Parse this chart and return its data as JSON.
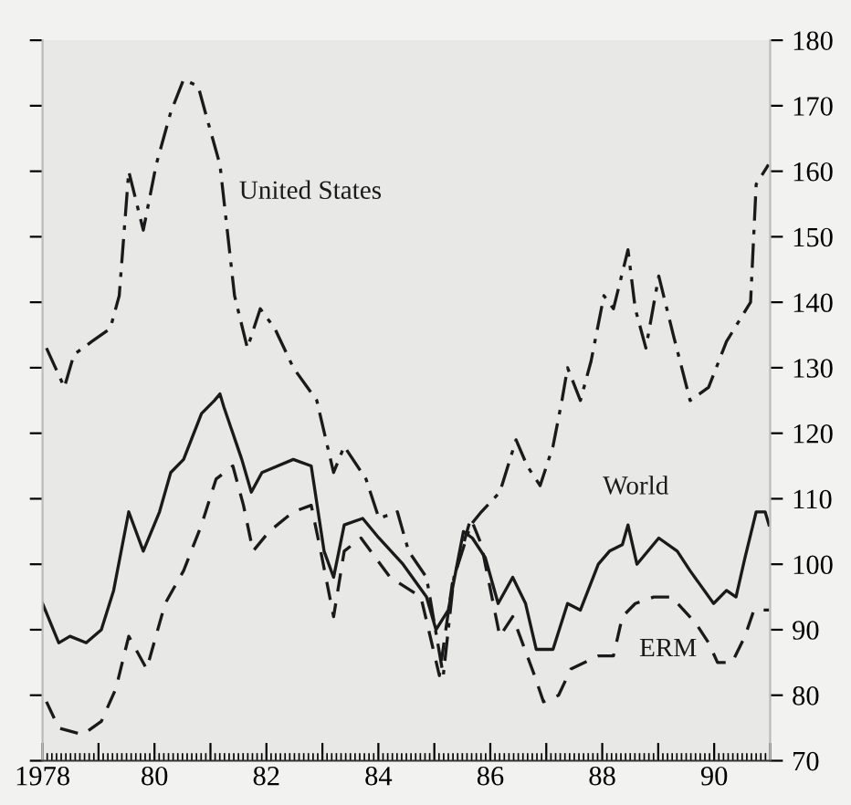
{
  "chart_data": {
    "type": "line",
    "xlim": [
      1978,
      1991
    ],
    "xticks": [
      {
        "value": 1978,
        "label": "1978"
      },
      {
        "value": 1979,
        "label": null
      },
      {
        "value": 1980,
        "label": "80"
      },
      {
        "value": 1981,
        "label": null
      },
      {
        "value": 1982,
        "label": "82"
      },
      {
        "value": 1983,
        "label": null
      },
      {
        "value": 1984,
        "label": "84"
      },
      {
        "value": 1985,
        "label": null
      },
      {
        "value": 1986,
        "label": "86"
      },
      {
        "value": 1987,
        "label": null
      },
      {
        "value": 1988,
        "label": "88"
      },
      {
        "value": 1989,
        "label": null
      },
      {
        "value": 1990,
        "label": "90"
      },
      {
        "value": 1991,
        "label": null
      }
    ],
    "ylim": [
      70,
      180
    ],
    "yticks": [
      70,
      80,
      90,
      100,
      110,
      120,
      130,
      140,
      150,
      160,
      170,
      180
    ],
    "grid": false,
    "legend": false,
    "marker": "none",
    "series": [
      {
        "name": "United States",
        "color": "#1a1a1a",
        "line_style": "dashdot",
        "x": [
          1978.07,
          1978.39,
          1978.56,
          1978.88,
          1979.21,
          1979.37,
          1979.54,
          1979.8,
          1980.03,
          1980.29,
          1980.52,
          1980.78,
          1980.94,
          1981.17,
          1981.43,
          1981.66,
          1981.89,
          1982.15,
          1982.48,
          1982.9,
          1983.2,
          1983.39,
          1983.78,
          1984.01,
          1984.34,
          1984.54,
          1984.86,
          1985.16,
          1985.35,
          1985.65,
          1985.84,
          1986.17,
          1986.46,
          1986.66,
          1986.89,
          1987.12,
          1987.28,
          1987.38,
          1987.61,
          1987.8,
          1988.03,
          1988.2,
          1988.46,
          1988.59,
          1988.78,
          1989.01,
          1989.27,
          1989.57,
          1989.9,
          1990.22,
          1990.65,
          1990.75,
          1990.97
        ],
        "values": [
          133,
          127,
          132,
          134,
          136,
          141,
          160,
          151,
          161,
          169,
          174,
          173,
          168,
          161,
          141,
          133,
          139,
          136,
          130,
          125,
          114,
          118,
          113,
          107,
          108,
          102,
          98,
          83,
          98,
          106,
          108,
          111,
          119,
          115,
          112,
          118,
          125,
          130,
          125,
          131,
          141,
          139,
          148,
          139,
          133,
          144,
          135,
          125,
          127,
          134,
          140,
          158,
          161
        ]
      },
      {
        "name": "World",
        "color": "#1a1a1a",
        "line_style": "solid",
        "x": [
          1978.0,
          1978.29,
          1978.49,
          1978.78,
          1979.05,
          1979.27,
          1979.54,
          1979.8,
          1980.09,
          1980.29,
          1980.52,
          1980.84,
          1981.07,
          1981.17,
          1981.24,
          1981.56,
          1981.73,
          1981.92,
          1982.48,
          1982.8,
          1983.03,
          1983.2,
          1983.39,
          1983.72,
          1984.01,
          1984.44,
          1984.86,
          1985.03,
          1985.25,
          1985.52,
          1985.68,
          1985.91,
          1986.14,
          1986.4,
          1986.63,
          1986.82,
          1987.12,
          1987.38,
          1987.61,
          1987.93,
          1988.13,
          1988.36,
          1988.46,
          1988.62,
          1989.01,
          1989.34,
          1989.57,
          1989.99,
          1990.22,
          1990.39,
          1990.55,
          1990.75,
          1990.91,
          1990.98
        ],
        "values": [
          94,
          88,
          89,
          88,
          90,
          96,
          108,
          102,
          108,
          114,
          116,
          123,
          125,
          126,
          124,
          116,
          111,
          114,
          116,
          115,
          102,
          98,
          106,
          107,
          104,
          100,
          95,
          90,
          93,
          105,
          104,
          101,
          94,
          98,
          94,
          87,
          87,
          94,
          93,
          100,
          102,
          103,
          106,
          100,
          104,
          102,
          99,
          94,
          96,
          95,
          101,
          108,
          108,
          106
        ]
      },
      {
        "name": "ERM",
        "color": "#1a1a1a",
        "line_style": "dashed",
        "x": [
          1978.07,
          1978.29,
          1978.72,
          1979.05,
          1979.31,
          1979.54,
          1979.86,
          1980.19,
          1980.52,
          1980.84,
          1981.1,
          1981.4,
          1981.59,
          1981.76,
          1982.05,
          1982.48,
          1982.8,
          1982.97,
          1983.2,
          1983.39,
          1983.69,
          1984.21,
          1984.76,
          1985.09,
          1985.32,
          1985.65,
          1985.84,
          1986.17,
          1986.4,
          1986.79,
          1986.95,
          1987.22,
          1987.44,
          1987.93,
          1988.2,
          1988.36,
          1988.59,
          1988.92,
          1989.24,
          1989.67,
          1989.9,
          1990.06,
          1990.32,
          1990.55,
          1990.71,
          1990.91,
          1990.98
        ],
        "values": [
          79,
          75,
          74,
          76,
          81,
          89,
          84,
          94,
          99,
          106,
          113,
          115,
          109,
          102,
          105,
          108,
          109,
          102,
          92,
          102,
          104,
          98,
          95,
          83,
          97,
          107,
          103,
          89,
          92,
          83,
          79,
          80,
          84,
          86,
          86,
          92,
          94,
          95,
          95,
          91,
          88,
          85,
          85,
          89,
          93,
          93,
          93
        ]
      }
    ]
  }
}
